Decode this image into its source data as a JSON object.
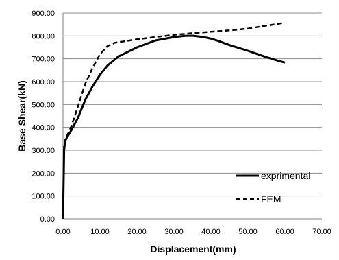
{
  "chart_data": {
    "type": "line",
    "xlabel": "Displacement(mm)",
    "ylabel": "Base Shear(kN)",
    "xlim": [
      0,
      70
    ],
    "ylim": [
      0,
      900
    ],
    "x_ticks": [
      0,
      10,
      20,
      30,
      40,
      50,
      60,
      70
    ],
    "y_ticks": [
      0,
      100,
      200,
      300,
      400,
      500,
      600,
      700,
      800,
      900
    ],
    "x_tick_labels": [
      "0.00",
      "10.00",
      "20.00",
      "30.00",
      "40.00",
      "50.00",
      "60.00",
      "70.00"
    ],
    "y_tick_labels": [
      "0.00",
      "100.00",
      "200.00",
      "300.00",
      "400.00",
      "500.00",
      "600.00",
      "700.00",
      "800.00",
      "900.00"
    ],
    "grid": "horizontal",
    "legend_position": "bottom-right",
    "series": [
      {
        "name": "exprimental",
        "style": "solid",
        "color": "#000000",
        "x": [
          0.0,
          0.3,
          0.6,
          1.0,
          2.0,
          3.0,
          4.0,
          5.0,
          6.0,
          8.0,
          10.0,
          12.0,
          15.0,
          20.0,
          25.0,
          30.0,
          33.0,
          35.0,
          38.0,
          40.0,
          42.0,
          45.0,
          48.0,
          50.0,
          53.0,
          55.0,
          58.0,
          60.0
        ],
        "y": [
          0,
          300,
          340,
          355,
          380,
          410,
          440,
          480,
          520,
          580,
          630,
          670,
          710,
          750,
          780,
          795,
          800,
          801,
          795,
          788,
          778,
          760,
          745,
          735,
          718,
          707,
          692,
          683
        ]
      },
      {
        "name": "FEM",
        "style": "dashed",
        "color": "#000000",
        "x": [
          0.0,
          0.3,
          0.6,
          1.0,
          2.0,
          3.0,
          4.0,
          5.0,
          6.0,
          8.0,
          10.0,
          12.0,
          14.0,
          16.0,
          20.0,
          25.0,
          30.0,
          35.0,
          40.0,
          45.0,
          50.0,
          55.0,
          58.0,
          59.5
        ],
        "y": [
          0,
          320,
          345,
          360,
          395,
          440,
          490,
          540,
          590,
          660,
          720,
          755,
          770,
          775,
          785,
          795,
          805,
          812,
          818,
          824,
          832,
          845,
          852,
          857
        ]
      }
    ]
  }
}
